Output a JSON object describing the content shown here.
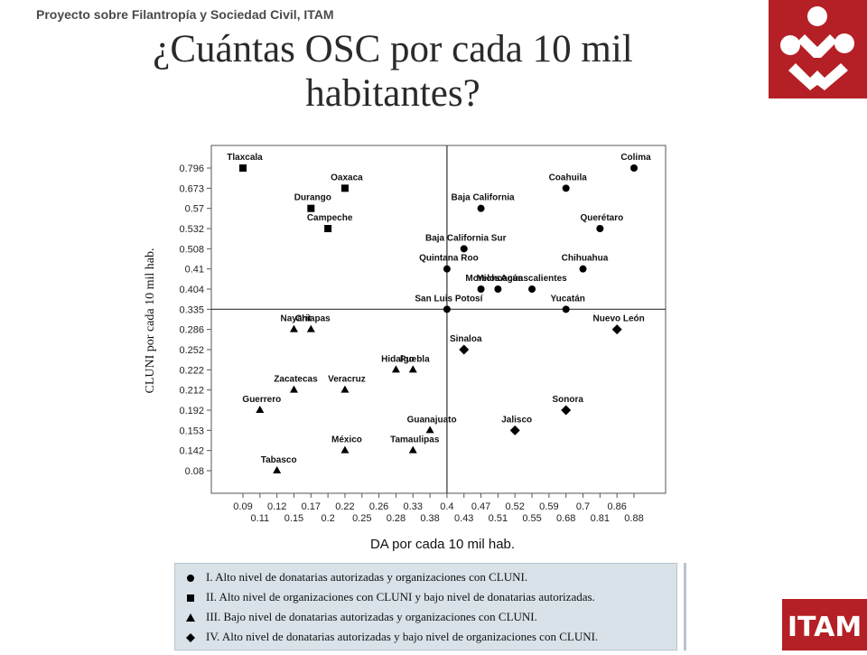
{
  "header": {
    "text": "Proyecto sobre Filantropía y Sociedad Civil, ITAM"
  },
  "title": {
    "line1": "¿Cuántas OSC por cada 10 mil",
    "line2": "habitantes?"
  },
  "logo_top": {
    "icon": "figures-logo-icon",
    "color": "#b42025"
  },
  "logo_bottom": {
    "text": "ITAM",
    "color": "#b42025"
  },
  "legend": {
    "items": [
      {
        "marker": "circle",
        "text": "I. Alto nivel de donatarias autorizadas y organizaciones con CLUNI."
      },
      {
        "marker": "square",
        "text": "II. Alto nivel de organizaciones con CLUNI y bajo nivel de donatarias autorizadas."
      },
      {
        "marker": "triangle",
        "text": "III. Bajo nivel de donatarias autorizadas y organizaciones con CLUNI."
      },
      {
        "marker": "diamond",
        "text": "IV. Alto nivel de donatarias autorizadas y bajo nivel de organizaciones con CLUNI."
      }
    ]
  },
  "chart_data": {
    "type": "scatter",
    "xlabel": "DA por cada 10 mil hab.",
    "ylabel": "CLUNI por cada 10 mil hab.",
    "x_ticks_top": [
      "0.09",
      "0.12",
      "0.17",
      "0.22",
      "0.26",
      "0.33",
      "0.4",
      "0.47",
      "0.52",
      "0.59",
      "0.7",
      "0.86"
    ],
    "x_ticks_bottom": [
      "0.11",
      "0.15",
      "0.2",
      "0.25",
      "0.28",
      "0.38",
      "0.43",
      "0.51",
      "0.55",
      "0.68",
      "0.81",
      "0.88"
    ],
    "y_ticks": [
      "0.796",
      "0.673",
      "0.57",
      "0.532",
      "0.508",
      "0.41",
      "0.404",
      "0.335",
      "0.286",
      "0.252",
      "0.222",
      "0.212",
      "0.192",
      "0.153",
      "0.142",
      "0.08"
    ],
    "reference_lines": {
      "x": "0.4",
      "y": "0.335"
    },
    "points": [
      {
        "name": "Tlaxcala",
        "x": "0.09",
        "y": "0.796",
        "marker": "square",
        "group": "II"
      },
      {
        "name": "Oaxaca",
        "x": "0.22",
        "y": "0.673",
        "marker": "square",
        "group": "II"
      },
      {
        "name": "Durango",
        "x": "0.17",
        "y": "0.57",
        "marker": "square",
        "group": "II"
      },
      {
        "name": "Campeche",
        "x": "0.2",
        "y": "0.532",
        "marker": "square",
        "group": "II"
      },
      {
        "name": "Colima",
        "x": "0.88",
        "y": "0.796",
        "marker": "circle",
        "group": "I"
      },
      {
        "name": "Coahuila",
        "x": "0.68",
        "y": "0.673",
        "marker": "circle",
        "group": "I"
      },
      {
        "name": "Baja California",
        "x": "0.47",
        "y": "0.57",
        "marker": "circle",
        "group": "I"
      },
      {
        "name": "Querétaro",
        "x": "0.81",
        "y": "0.532",
        "marker": "circle",
        "group": "I"
      },
      {
        "name": "Baja California Sur",
        "x": "0.43",
        "y": "0.508",
        "marker": "circle",
        "group": "I"
      },
      {
        "name": "Quintana Roo",
        "x": "0.4",
        "y": "0.41",
        "marker": "circle",
        "group": "I"
      },
      {
        "name": "Chihuahua",
        "x": "0.7",
        "y": "0.41",
        "marker": "circle",
        "group": "I"
      },
      {
        "name": "Michoacán",
        "x": "0.51",
        "y": "0.404",
        "marker": "circle",
        "group": "I"
      },
      {
        "name": "Aguascalientes",
        "x": "0.55",
        "y": "0.404",
        "marker": "circle",
        "group": "I"
      },
      {
        "name": "Morelos",
        "x": "0.47",
        "y": "0.404",
        "marker": "circle",
        "group": "I"
      },
      {
        "name": "Yucatán",
        "x": "0.68",
        "y": "0.335",
        "marker": "circle",
        "group": "I"
      },
      {
        "name": "San Luis Potosí",
        "x": "0.4",
        "y": "0.335",
        "marker": "circle",
        "group": "I"
      },
      {
        "name": "Chiapas",
        "x": "0.17",
        "y": "0.286",
        "marker": "triangle",
        "group": "III"
      },
      {
        "name": "Nayarit",
        "x": "0.15",
        "y": "0.286",
        "marker": "triangle",
        "group": "III"
      },
      {
        "name": "Hidalgo",
        "x": "0.28",
        "y": "0.222",
        "marker": "triangle",
        "group": "III"
      },
      {
        "name": "Puebla",
        "x": "0.33",
        "y": "0.222",
        "marker": "triangle",
        "group": "III"
      },
      {
        "name": "Zacatecas",
        "x": "0.15",
        "y": "0.212",
        "marker": "triangle",
        "group": "III"
      },
      {
        "name": "Veracruz",
        "x": "0.22",
        "y": "0.212",
        "marker": "triangle",
        "group": "III"
      },
      {
        "name": "Guerrero",
        "x": "0.11",
        "y": "0.192",
        "marker": "triangle",
        "group": "III"
      },
      {
        "name": "Guanajuato",
        "x": "0.38",
        "y": "0.153",
        "marker": "triangle",
        "group": "III"
      },
      {
        "name": "Tamaulipas",
        "x": "0.33",
        "y": "0.142",
        "marker": "triangle",
        "group": "III"
      },
      {
        "name": "México",
        "x": "0.22",
        "y": "0.142",
        "marker": "triangle",
        "group": "III"
      },
      {
        "name": "Tabasco",
        "x": "0.12",
        "y": "0.08",
        "marker": "triangle",
        "group": "III"
      },
      {
        "name": "Nuevo León",
        "x": "0.86",
        "y": "0.286",
        "marker": "diamond",
        "group": "IV"
      },
      {
        "name": "Sinaloa",
        "x": "0.43",
        "y": "0.252",
        "marker": "diamond",
        "group": "IV"
      },
      {
        "name": "Sonora",
        "x": "0.68",
        "y": "0.192",
        "marker": "diamond",
        "group": "IV"
      },
      {
        "name": "Jalisco",
        "x": "0.52",
        "y": "0.153",
        "marker": "diamond",
        "group": "IV"
      }
    ]
  }
}
